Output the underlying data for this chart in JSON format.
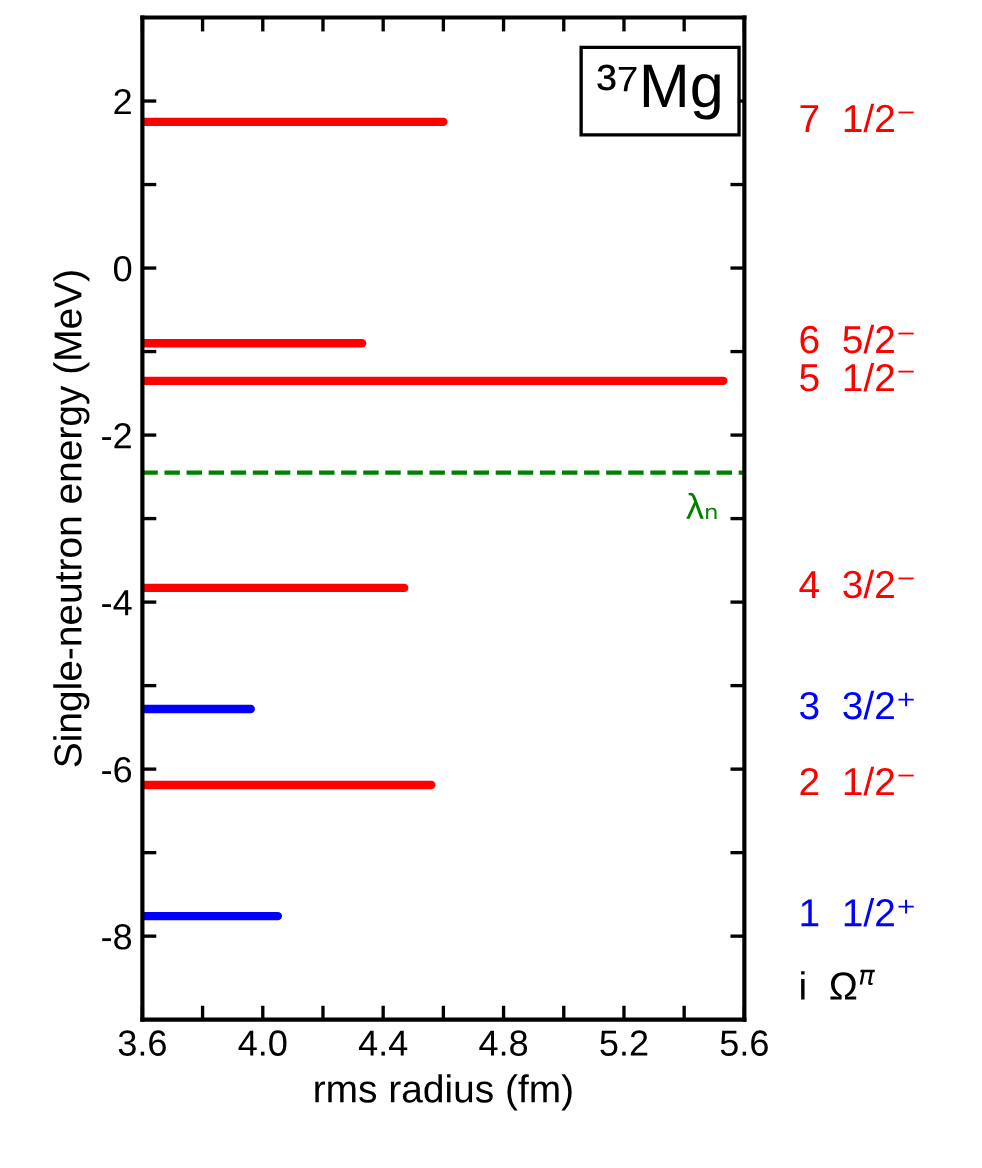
{
  "chart_data": {
    "type": "line",
    "xlabel": "rms radius (fm)",
    "ylabel": "Single-neutron energy (MeV)",
    "xlim": [
      3.6,
      5.6
    ],
    "ylim": [
      -9,
      3
    ],
    "xticks": [
      {
        "value": 3.6,
        "label": "3.6"
      },
      {
        "value": 3.8,
        "label": null
      },
      {
        "value": 4.0,
        "label": "4.0"
      },
      {
        "value": 4.2,
        "label": null
      },
      {
        "value": 4.4,
        "label": "4.4"
      },
      {
        "value": 4.6,
        "label": null
      },
      {
        "value": 4.8,
        "label": "4.8"
      },
      {
        "value": 5.0,
        "label": null
      },
      {
        "value": 5.2,
        "label": "5.2"
      },
      {
        "value": 5.4,
        "label": null
      },
      {
        "value": 5.6,
        "label": "5.6"
      }
    ],
    "yticks": [
      -8,
      {
        "value": -7,
        "label": null
      },
      -6,
      {
        "value": -5,
        "label": null
      },
      -4,
      {
        "value": -3,
        "label": null
      },
      -2,
      {
        "value": -1,
        "label": null
      },
      0,
      {
        "value": 1,
        "label": null
      },
      2
    ],
    "grid": false,
    "marker": "none",
    "line_style": "solid",
    "series": [
      {
        "name": "1  1/2⁺",
        "color": "#0000ff",
        "x": [
          3.6,
          4.05
        ],
        "values": [
          -7.76,
          -7.76
        ]
      },
      {
        "name": "2  1/2⁻",
        "color": "#ff0000",
        "x": [
          3.6,
          4.56
        ],
        "values": [
          -6.19,
          -6.19
        ]
      },
      {
        "name": "3  3/2⁺",
        "color": "#0000ff",
        "x": [
          3.6,
          3.96
        ],
        "values": [
          -5.28,
          -5.28
        ]
      },
      {
        "name": "4  3/2⁻",
        "color": "#ff0000",
        "x": [
          3.6,
          4.47
        ],
        "values": [
          -3.83,
          -3.83
        ]
      },
      {
        "name": "5  1/2⁻",
        "color": "#ff0000",
        "x": [
          3.6,
          5.53
        ],
        "values": [
          -1.35,
          -1.35
        ]
      },
      {
        "name": "6  5/2⁻",
        "color": "#ff0000",
        "x": [
          3.6,
          4.33
        ],
        "values": [
          -0.9,
          -0.9
        ]
      },
      {
        "name": "7  1/2⁻",
        "color": "#ff0000",
        "x": [
          3.6,
          4.6
        ],
        "values": [
          1.75,
          1.75
        ]
      }
    ],
    "ref_lines": [
      {
        "axis": "y",
        "value": -2.45,
        "label": "λₙ",
        "color": "#008000",
        "line_style": "dashed"
      }
    ],
    "annotations": [
      "³⁷Mg",
      "i  Ω$^{π}$"
    ]
  }
}
